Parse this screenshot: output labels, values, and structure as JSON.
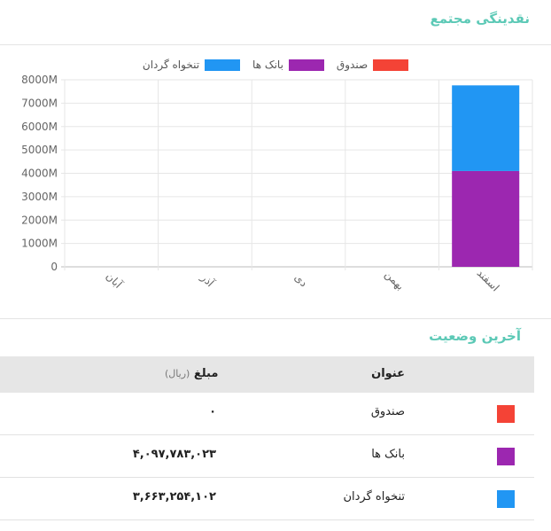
{
  "header": {
    "title": "نقدینگی مجتمع"
  },
  "chart_data": {
    "type": "bar",
    "stacked": true,
    "categories": [
      "آبان",
      "آذر",
      "دی",
      "بهمن",
      "اسفند"
    ],
    "series": [
      {
        "name": "صندوق",
        "color": "#f44336",
        "values": [
          0,
          0,
          0,
          0,
          0
        ]
      },
      {
        "name": "بانک ها",
        "color": "#9c27b0",
        "values": [
          0,
          0,
          0,
          0,
          4097.783023
        ]
      },
      {
        "name": "تنخواه گردان",
        "color": "#2196f3",
        "values": [
          0,
          0,
          0,
          0,
          3663.254102
        ]
      }
    ],
    "y_ticks": [
      "0",
      "1000M",
      "2000M",
      "3000M",
      "4000M",
      "5000M",
      "6000M",
      "7000M",
      "8000M"
    ],
    "ylim": [
      0,
      8000
    ],
    "legend_position": "top",
    "grid": true
  },
  "status": {
    "title": "آخرین وضعیت",
    "columns": {
      "title": "عنوان",
      "amount": "مبلغ",
      "unit": "(ریال)"
    },
    "rows": [
      {
        "label": "صندوق",
        "amount": "۰",
        "color": "#f44336"
      },
      {
        "label": "بانک ها",
        "amount": "۴,۰۹۷,۷۸۳,۰۲۳",
        "color": "#9c27b0"
      },
      {
        "label": "تنخواه گردان",
        "amount": "۳,۶۶۳,۲۵۴,۱۰۲",
        "color": "#2196f3"
      }
    ]
  }
}
